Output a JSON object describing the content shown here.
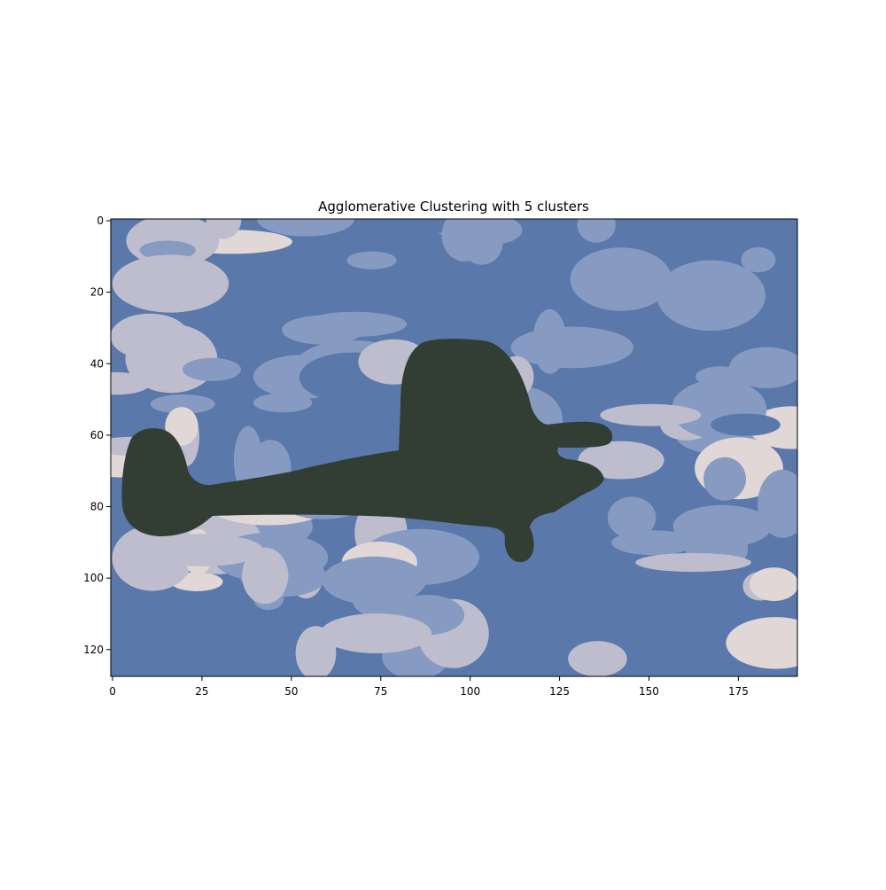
{
  "chart_data": {
    "type": "heatmap",
    "title": "Agglomerative Clustering with 5 clusters",
    "xlabel": "",
    "ylabel": "",
    "image_shape": [
      128,
      192
    ],
    "xlim": [
      -0.5,
      191.5
    ],
    "ylim": [
      127.5,
      -0.5
    ],
    "x_ticks": [
      0,
      25,
      50,
      75,
      100,
      125,
      150,
      175
    ],
    "y_ticks": [
      0,
      20,
      40,
      60,
      80,
      100,
      120
    ],
    "n_clusters": 5,
    "cluster_colors": [
      "#5a78aa",
      "#879bc2",
      "#bdbdcd",
      "#e1d7d6",
      "#323e34"
    ],
    "grid": false,
    "legend": "none"
  }
}
